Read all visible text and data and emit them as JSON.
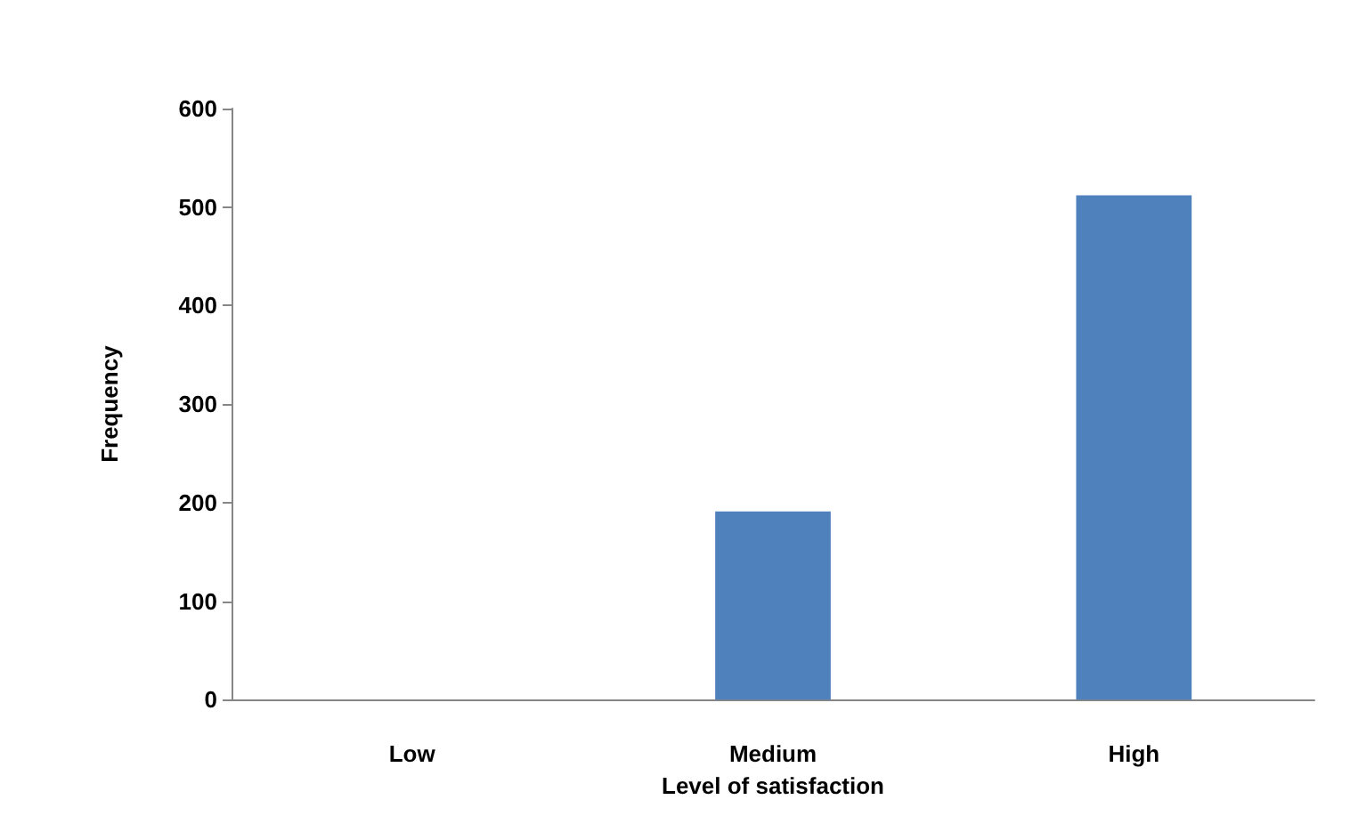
{
  "chart_data": {
    "type": "bar",
    "xlabel": "Level of satisfaction",
    "ylabel": "Frequency",
    "categories": [
      "Low",
      "Medium",
      "High"
    ],
    "values": [
      0,
      191,
      512
    ],
    "color": "#4f81bd",
    "ylim": [
      0,
      600
    ],
    "yticks": [
      0,
      100,
      200,
      300,
      400,
      500,
      600
    ],
    "grid": false
  }
}
